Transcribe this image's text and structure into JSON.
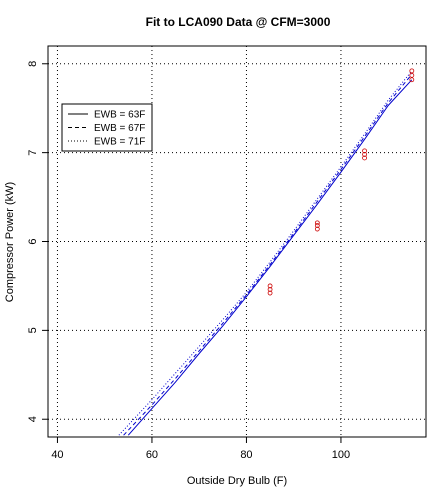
{
  "chart_data": {
    "type": "line",
    "title": "Fit to LCA090 Data @ CFM=3000",
    "xlabel": "Outside Dry Bulb (F)",
    "ylabel": "Compressor Power (kW)",
    "xlim": [
      38,
      118
    ],
    "ylim": [
      3.8,
      8.2
    ],
    "xticks": [
      40,
      60,
      80,
      100
    ],
    "yticks": [
      4,
      5,
      6,
      7,
      8
    ],
    "grid": true,
    "legend_position": "top-left",
    "line_color": "#0000cc",
    "point_color": "#cc0000",
    "series": [
      {
        "name": "EWB = 63F",
        "style": "solid",
        "x": [
          55,
          60,
          65,
          70,
          75,
          80,
          85,
          90,
          95,
          100,
          105,
          110,
          115
        ],
        "y": [
          3.82,
          4.12,
          4.42,
          4.74,
          5.05,
          5.38,
          5.72,
          6.07,
          6.42,
          6.78,
          7.15,
          7.53,
          7.82
        ]
      },
      {
        "name": "EWB = 67F",
        "style": "dashed",
        "x": [
          54,
          60,
          65,
          70,
          75,
          80,
          85,
          90,
          95,
          100,
          105,
          110,
          115
        ],
        "y": [
          3.82,
          4.16,
          4.46,
          4.77,
          5.08,
          5.4,
          5.74,
          6.09,
          6.45,
          6.81,
          7.18,
          7.56,
          7.88
        ]
      },
      {
        "name": "EWB = 71F",
        "style": "dotted",
        "x": [
          53,
          60,
          65,
          70,
          75,
          80,
          85,
          90,
          95,
          100,
          105,
          110,
          115
        ],
        "y": [
          3.82,
          4.22,
          4.52,
          4.82,
          5.12,
          5.43,
          5.77,
          6.12,
          6.48,
          6.84,
          7.21,
          7.59,
          7.92
        ]
      }
    ],
    "points": [
      {
        "x": 85,
        "y": 5.42
      },
      {
        "x": 85,
        "y": 5.46
      },
      {
        "x": 85,
        "y": 5.5
      },
      {
        "x": 95,
        "y": 6.14
      },
      {
        "x": 95,
        "y": 6.18
      },
      {
        "x": 95,
        "y": 6.21
      },
      {
        "x": 105,
        "y": 6.94
      },
      {
        "x": 105,
        "y": 6.98
      },
      {
        "x": 105,
        "y": 7.02
      },
      {
        "x": 115,
        "y": 7.82
      },
      {
        "x": 115,
        "y": 7.87
      },
      {
        "x": 115,
        "y": 7.92
      }
    ]
  }
}
